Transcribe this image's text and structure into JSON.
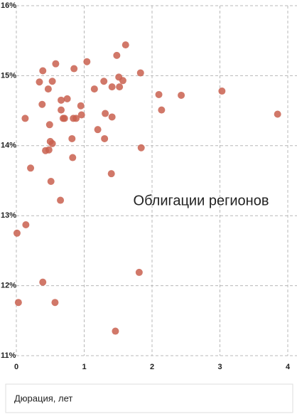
{
  "chart_data": {
    "type": "scatter",
    "annotation": "Облигации регионов",
    "x_label": "Дюрация, лет",
    "color": "#c9604f",
    "grid": true,
    "xlim": [
      0,
      4
    ],
    "ylim": [
      11,
      16
    ],
    "xticks": [
      0,
      1,
      2,
      3,
      4
    ],
    "yticks": [
      {
        "value": 11,
        "label": "11%"
      },
      {
        "value": 12,
        "label": "12%"
      },
      {
        "value": 13,
        "label": "13%"
      },
      {
        "value": 14,
        "label": "14%"
      },
      {
        "value": 15,
        "label": "15%"
      },
      {
        "value": 16,
        "label": "16%"
      }
    ],
    "x": [
      1.61,
      1.48,
      1.04,
      0.58,
      0.85,
      0.39,
      1.83,
      1.51,
      1.57,
      1.29,
      0.34,
      0.53,
      1.52,
      1.41,
      1.15,
      0.47,
      3.03,
      2.1,
      2.43,
      0.75,
      0.66,
      0.38,
      0.95,
      0.66,
      2.14,
      1.31,
      0.96,
      3.85,
      1.41,
      0.13,
      0.69,
      0.71,
      0.84,
      0.88,
      0.49,
      1.2,
      0.82,
      1.3,
      0.5,
      0.53,
      0.43,
      0.48,
      1.84,
      0.83,
      0.21,
      1.4,
      0.51,
      0.65,
      0.14,
      0.01,
      1.81,
      0.39,
      0.03,
      0.57,
      1.46
    ],
    "values": [
      15.44,
      15.29,
      15.2,
      15.17,
      15.1,
      15.07,
      15.04,
      14.98,
      14.93,
      14.92,
      14.91,
      14.92,
      14.84,
      14.84,
      14.81,
      14.81,
      14.78,
      14.73,
      14.72,
      14.67,
      14.65,
      14.59,
      14.57,
      14.51,
      14.51,
      14.46,
      14.44,
      14.45,
      14.41,
      14.39,
      14.39,
      14.39,
      14.39,
      14.39,
      14.3,
      14.23,
      14.1,
      14.1,
      14.06,
      14.03,
      13.93,
      13.94,
      13.97,
      13.83,
      13.68,
      13.6,
      13.49,
      13.22,
      12.87,
      12.75,
      12.19,
      12.05,
      11.76,
      11.76,
      11.35
    ]
  }
}
